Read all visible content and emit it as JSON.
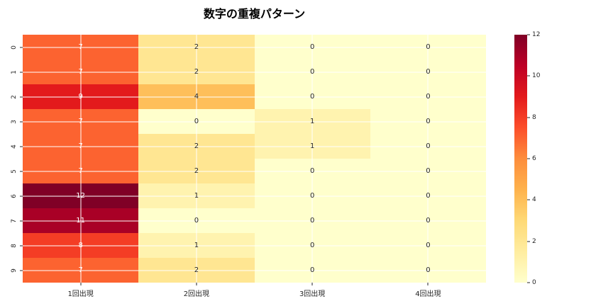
{
  "title": "数字の重複パターン",
  "chart_data": {
    "type": "heatmap",
    "title": "数字の重複パターン",
    "row_labels": [
      "0",
      "1",
      "2",
      "3",
      "4",
      "5",
      "6",
      "7",
      "8",
      "9"
    ],
    "col_labels": [
      "1回出現",
      "2回出現",
      "3回出現",
      "4回出現"
    ],
    "values": [
      [
        7,
        2,
        0,
        0
      ],
      [
        7,
        2,
        0,
        0
      ],
      [
        9,
        4,
        0,
        0
      ],
      [
        7,
        0,
        1,
        0
      ],
      [
        7,
        2,
        1,
        0
      ],
      [
        7,
        2,
        0,
        0
      ],
      [
        12,
        1,
        0,
        0
      ],
      [
        11,
        0,
        0,
        0
      ],
      [
        8,
        1,
        0,
        0
      ],
      [
        7,
        2,
        0,
        0
      ]
    ],
    "vmin": 0,
    "vmax": 12,
    "colorbar_ticks": [
      0,
      2,
      4,
      6,
      8,
      10,
      12
    ],
    "colormap": {
      "name": "YlOrRd",
      "stops": [
        [
          0.0,
          "#ffffcc"
        ],
        [
          0.125,
          "#ffeda0"
        ],
        [
          0.25,
          "#fed976"
        ],
        [
          0.375,
          "#feb24c"
        ],
        [
          0.5,
          "#fd8d3c"
        ],
        [
          0.625,
          "#fc4e2a"
        ],
        [
          0.75,
          "#e31a1c"
        ],
        [
          0.875,
          "#bd0026"
        ],
        [
          1.0,
          "#800026"
        ]
      ]
    },
    "grid_color": "#ffffff",
    "annotation_colors": {
      "light": "#ffffff",
      "dark": "#262626"
    },
    "tick_color": "#262626",
    "legend_position": "right-colorbar",
    "grid": true
  }
}
